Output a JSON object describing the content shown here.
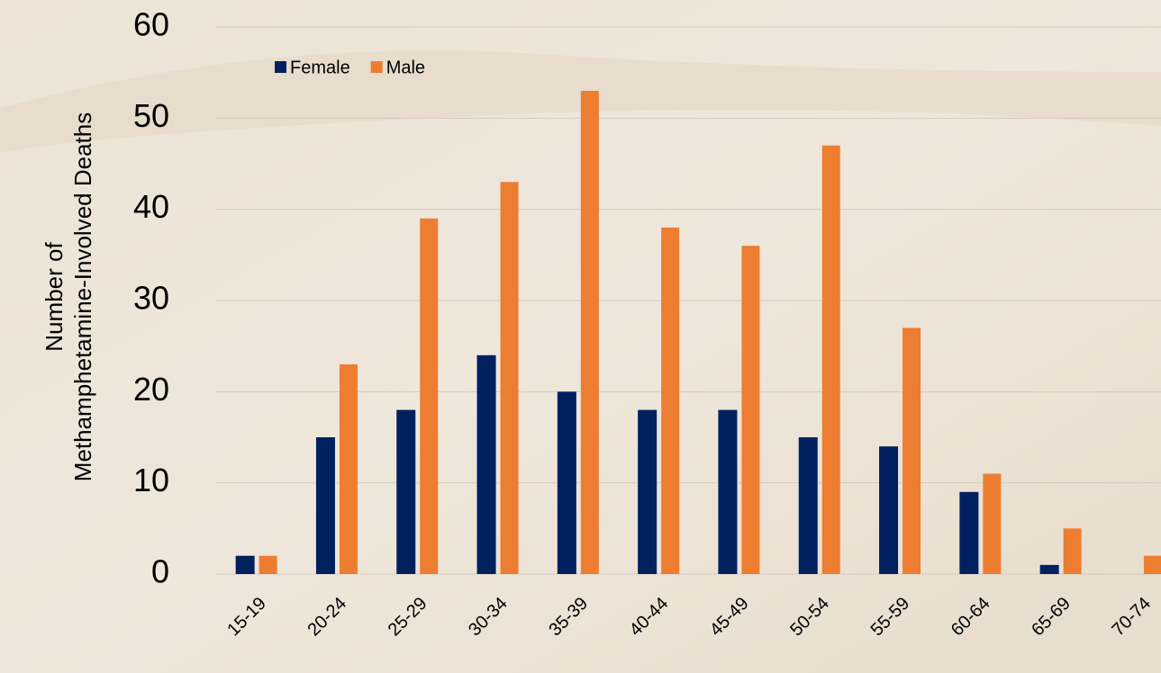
{
  "chart_data": {
    "type": "bar",
    "y_label_lines": [
      "Number of",
      "Methamphetamine-Involved Deaths"
    ],
    "categories": [
      "15-19",
      "20-24",
      "25-29",
      "30-34",
      "35-39",
      "40-44",
      "45-49",
      "50-54",
      "55-59",
      "60-64",
      "65-69",
      "70-74"
    ],
    "series": [
      {
        "name": "Female",
        "color": "#002060",
        "values": [
          2,
          15,
          18,
          24,
          20,
          18,
          18,
          15,
          14,
          9,
          1,
          0
        ]
      },
      {
        "name": "Male",
        "color": "#ed7d31",
        "values": [
          2,
          23,
          39,
          43,
          53,
          38,
          36,
          47,
          27,
          11,
          5,
          2
        ]
      }
    ],
    "ylim": [
      0,
      60
    ],
    "yticks": [
      0,
      10,
      20,
      30,
      40,
      50,
      60
    ],
    "grid": true,
    "legend": "top-left"
  }
}
